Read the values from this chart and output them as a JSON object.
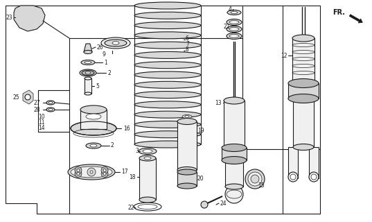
{
  "bg": "#ffffff",
  "lc": "#1a1a1a",
  "fc_light": "#f0f0f0",
  "fc_mid": "#d8d8d8",
  "fc_dark": "#b8b8b8",
  "lw_main": 0.8,
  "lw_thin": 0.5
}
